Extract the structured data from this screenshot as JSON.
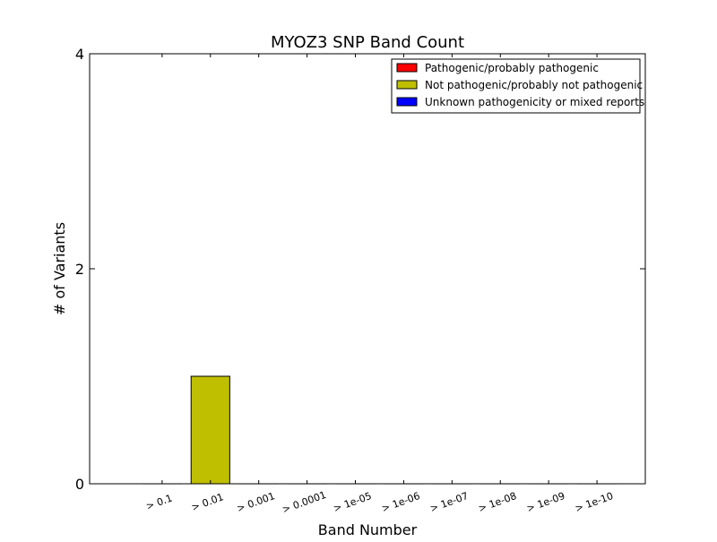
{
  "chart_data": {
    "type": "bar",
    "title": "MYOZ3 SNP Band Count",
    "xlabel": "Band Number",
    "ylabel": "# of Variants",
    "ylim": [
      0,
      4
    ],
    "yticks": [
      "0",
      "2",
      "4"
    ],
    "categories": [
      "> 0.1",
      "> 0.01",
      "> 0.001",
      "> 0.0001",
      "> 1e-05",
      "> 1e-06",
      "> 1e-07",
      "> 1e-08",
      "> 1e-09",
      "> 1e-10"
    ],
    "series": [
      {
        "name": "Pathogenic/probably pathogenic",
        "color": "#ff0000",
        "values": [
          0,
          0,
          0,
          0,
          0,
          0,
          0,
          0,
          0,
          0
        ]
      },
      {
        "name": "Not pathogenic/probably not pathogenic",
        "color": "#bfbf00",
        "values": [
          0,
          1,
          0,
          0,
          0,
          0,
          0,
          0,
          0,
          0
        ]
      },
      {
        "name": "Unknown pathogenicity or mixed reports",
        "color": "#0000ff",
        "values": [
          0,
          0,
          0,
          0,
          0,
          0,
          0,
          0,
          0,
          0
        ]
      }
    ],
    "stacked": true,
    "grid": false,
    "legend_position": "top-right"
  }
}
